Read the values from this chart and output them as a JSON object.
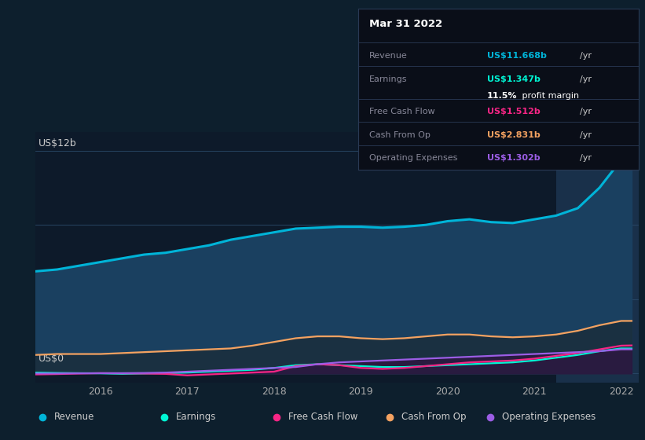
{
  "background_color": "#0d1f2d",
  "plot_bg_color": "#0d1a2a",
  "years": [
    2015.25,
    2015.5,
    2015.75,
    2016.0,
    2016.25,
    2016.5,
    2016.75,
    2017.0,
    2017.25,
    2017.5,
    2017.75,
    2018.0,
    2018.25,
    2018.5,
    2018.75,
    2019.0,
    2019.25,
    2019.5,
    2019.75,
    2020.0,
    2020.25,
    2020.5,
    2020.75,
    2021.0,
    2021.25,
    2021.5,
    2021.75,
    2022.0,
    2022.12
  ],
  "revenue": [
    5.5,
    5.6,
    5.8,
    6.0,
    6.2,
    6.4,
    6.5,
    6.7,
    6.9,
    7.2,
    7.4,
    7.6,
    7.8,
    7.85,
    7.9,
    7.9,
    7.85,
    7.9,
    8.0,
    8.2,
    8.3,
    8.15,
    8.1,
    8.3,
    8.5,
    8.9,
    10.0,
    11.5,
    11.668
  ],
  "earnings": [
    0.05,
    0.03,
    0.02,
    0.01,
    -0.02,
    0.0,
    0.02,
    0.05,
    0.1,
    0.15,
    0.2,
    0.3,
    0.45,
    0.5,
    0.45,
    0.4,
    0.35,
    0.35,
    0.4,
    0.45,
    0.5,
    0.55,
    0.6,
    0.7,
    0.85,
    1.0,
    1.2,
    1.35,
    1.347
  ],
  "free_cash_flow": [
    -0.05,
    -0.03,
    0.0,
    0.02,
    0.01,
    0.0,
    -0.02,
    -0.1,
    -0.05,
    0.0,
    0.05,
    0.1,
    0.4,
    0.5,
    0.45,
    0.3,
    0.25,
    0.3,
    0.4,
    0.5,
    0.6,
    0.65,
    0.7,
    0.8,
    0.95,
    1.1,
    1.3,
    1.5,
    1.512
  ],
  "cash_from_op": [
    1.0,
    1.05,
    1.05,
    1.05,
    1.1,
    1.15,
    1.2,
    1.25,
    1.3,
    1.35,
    1.5,
    1.7,
    1.9,
    2.0,
    2.0,
    1.9,
    1.85,
    1.9,
    2.0,
    2.1,
    2.1,
    2.0,
    1.95,
    2.0,
    2.1,
    2.3,
    2.6,
    2.83,
    2.831
  ],
  "operating_expenses": [
    0.0,
    0.0,
    0.01,
    0.02,
    0.02,
    0.03,
    0.05,
    0.1,
    0.15,
    0.2,
    0.25,
    0.3,
    0.35,
    0.5,
    0.6,
    0.65,
    0.7,
    0.75,
    0.8,
    0.85,
    0.9,
    0.95,
    1.0,
    1.05,
    1.1,
    1.15,
    1.2,
    1.3,
    1.302
  ],
  "revenue_color": "#00b4d8",
  "earnings_color": "#00f5d4",
  "free_cash_flow_color": "#f72585",
  "cash_from_op_color": "#f4a261",
  "operating_expenses_color": "#9b5de5",
  "revenue_fill": "#1a4060",
  "cashop_fill": "#1a3040",
  "opex_fill": "#2a1a40",
  "ylim": [
    -0.5,
    13.0
  ],
  "xlim": [
    2015.25,
    2022.2
  ],
  "y_label_top": "US$12b",
  "y_label_bottom": "US$0",
  "grid_color": "#2a4a6a",
  "tooltip_title": "Mar 31 2022",
  "legend_items": [
    "Revenue",
    "Earnings",
    "Free Cash Flow",
    "Cash From Op",
    "Operating Expenses"
  ],
  "shaded_region_start": 2021.25,
  "shaded_region_end": 2022.2,
  "xticks": [
    2016,
    2017,
    2018,
    2019,
    2020,
    2021,
    2022
  ],
  "xtick_labels": [
    "2016",
    "2017",
    "2018",
    "2019",
    "2020",
    "2021",
    "2022"
  ]
}
